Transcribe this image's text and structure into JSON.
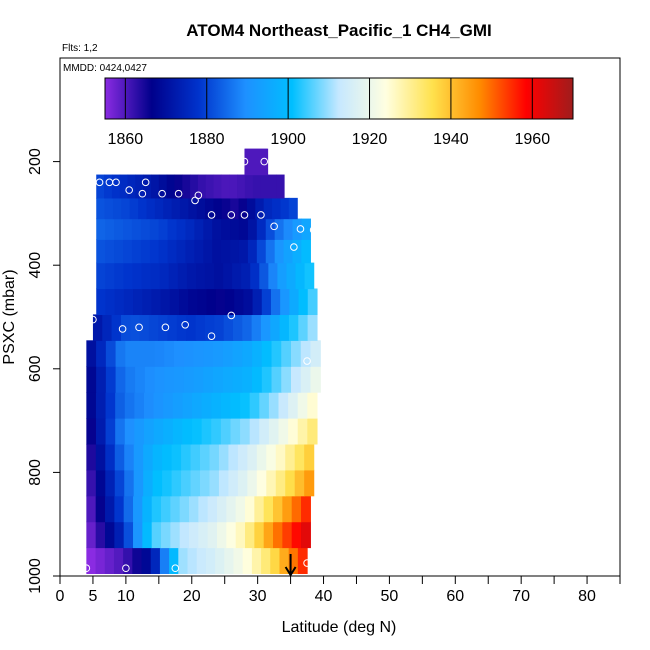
{
  "chart_data": {
    "type": "heatmap",
    "title": "ATOM4 Northeast_Pacific_1 CH4_GMI",
    "subtitle_flights": "Flts: 1,2",
    "subtitle_dates": "MMDD: 0424,0427",
    "xlabel": "Latitude (deg N)",
    "ylabel": "PSXC (mbar)",
    "xlim": [
      0,
      85
    ],
    "ylim": [
      1000,
      0
    ],
    "x_ticks": [
      0,
      5,
      10,
      20,
      30,
      40,
      50,
      60,
      70,
      80
    ],
    "x_tick_labels": [
      "0",
      "5",
      "10",
      "20",
      "30",
      "40",
      "50",
      "60",
      "70",
      "80"
    ],
    "y_ticks": [
      200,
      400,
      600,
      800,
      1000
    ],
    "y_tick_labels": [
      "200",
      "400",
      "600",
      "800",
      "1000"
    ],
    "colorbar": {
      "range": [
        1855,
        1970
      ],
      "ticks": [
        1860,
        1880,
        1900,
        1920,
        1940,
        1960
      ],
      "tick_labels": [
        "1860",
        "1880",
        "1900",
        "1920",
        "1940",
        "1960"
      ],
      "colors": [
        "#8a2be2",
        "#00008b",
        "#0033cc",
        "#1e90ff",
        "#00bfff",
        "#c6e8ff",
        "#ffffe0",
        "#ffe14d",
        "#ff8c00",
        "#ff0000",
        "#a01c1c"
      ],
      "grid": true
    },
    "profiles": [
      {
        "pressure": 970,
        "lat_start": 4,
        "lat_end": 37.5,
        "values": [
          1855,
          1860,
          1870,
          1910,
          1915,
          1922,
          1935,
          1955
        ]
      },
      {
        "pressure": 920,
        "lat_start": 4,
        "lat_end": 38,
        "values": [
          1858,
          1875,
          1905,
          1912,
          1918,
          1928,
          1948,
          1962
        ]
      },
      {
        "pressure": 870,
        "lat_start": 4,
        "lat_end": 38,
        "values": [
          1860,
          1880,
          1902,
          1908,
          1914,
          1922,
          1938,
          1955
        ]
      },
      {
        "pressure": 820,
        "lat_start": 4,
        "lat_end": 38.5,
        "values": [
          1862,
          1882,
          1900,
          1905,
          1910,
          1918,
          1930,
          1945
        ]
      },
      {
        "pressure": 770,
        "lat_start": 4,
        "lat_end": 38.5,
        "values": [
          1864,
          1885,
          1898,
          1903,
          1908,
          1915,
          1925,
          1938
        ]
      },
      {
        "pressure": 720,
        "lat_start": 4,
        "lat_end": 39,
        "values": [
          1866,
          1888,
          1895,
          1900,
          1904,
          1910,
          1920,
          1932
        ]
      },
      {
        "pressure": 670,
        "lat_start": 4,
        "lat_end": 39,
        "values": [
          1868,
          1885,
          1890,
          1894,
          1898,
          1902,
          1912,
          1925
        ]
      },
      {
        "pressure": 620,
        "lat_start": 4,
        "lat_end": 39.5,
        "values": [
          1868,
          1886,
          1890,
          1892,
          1895,
          1898,
          1908,
          1920
        ]
      },
      {
        "pressure": 570,
        "lat_start": 4,
        "lat_end": 39.5,
        "values": [
          1870,
          1888,
          1888,
          1890,
          1892,
          1896,
          1905,
          1915
        ]
      },
      {
        "pressure": 520,
        "lat_start": 5,
        "lat_end": 39,
        "values": [
          1872,
          1882,
          1880,
          1878,
          1880,
          1885,
          1898,
          1910
        ]
      },
      {
        "pressure": 470,
        "lat_start": 5.5,
        "lat_end": 39,
        "values": [
          1878,
          1875,
          1872,
          1868,
          1866,
          1870,
          1890,
          1905
        ]
      },
      {
        "pressure": 420,
        "lat_start": 5.5,
        "lat_end": 38.5,
        "values": [
          1880,
          1878,
          1876,
          1872,
          1870,
          1874,
          1892,
          1902
        ]
      },
      {
        "pressure": 370,
        "lat_start": 5.5,
        "lat_end": 38,
        "values": [
          1882,
          1880,
          1878,
          1874,
          1870,
          1872,
          1890,
          1900
        ]
      },
      {
        "pressure": 330,
        "lat_start": 5.5,
        "lat_end": 38,
        "values": [
          1884,
          1882,
          1880,
          1876,
          1870,
          1868,
          1885,
          1895
        ]
      },
      {
        "pressure": 290,
        "lat_start": 5.5,
        "lat_end": 36,
        "values": [
          1882,
          1880,
          1876,
          1872,
          1868,
          1864,
          1875,
          1880
        ]
      },
      {
        "pressure": 250,
        "lat_start": 5.5,
        "lat_end": 34,
        "values": [
          1880,
          1876,
          1872,
          1866,
          1862,
          1860,
          1862,
          1862
        ]
      },
      {
        "pressure": 200,
        "lat_start": 28,
        "lat_end": 31.5,
        "values": [
          1860,
          1860
        ]
      }
    ],
    "sample_points": [
      {
        "lat": 6,
        "pressure": 240
      },
      {
        "lat": 7.5,
        "pressure": 240
      },
      {
        "lat": 8.5,
        "pressure": 240
      },
      {
        "lat": 10.5,
        "pressure": 255
      },
      {
        "lat": 13,
        "pressure": 240
      },
      {
        "lat": 12.5,
        "pressure": 262
      },
      {
        "lat": 15.5,
        "pressure": 262
      },
      {
        "lat": 18,
        "pressure": 262
      },
      {
        "lat": 20.5,
        "pressure": 275
      },
      {
        "lat": 21,
        "pressure": 265
      },
      {
        "lat": 23,
        "pressure": 303
      },
      {
        "lat": 26,
        "pressure": 303
      },
      {
        "lat": 28,
        "pressure": 303
      },
      {
        "lat": 30.5,
        "pressure": 303
      },
      {
        "lat": 28,
        "pressure": 200
      },
      {
        "lat": 31,
        "pressure": 200
      },
      {
        "lat": 32.5,
        "pressure": 325
      },
      {
        "lat": 35.5,
        "pressure": 365
      },
      {
        "lat": 36.5,
        "pressure": 330
      },
      {
        "lat": 38.5,
        "pressure": 332
      },
      {
        "lat": 4,
        "pressure": 527
      },
      {
        "lat": 5,
        "pressure": 505
      },
      {
        "lat": 9.5,
        "pressure": 523
      },
      {
        "lat": 12,
        "pressure": 520
      },
      {
        "lat": 16,
        "pressure": 520
      },
      {
        "lat": 19,
        "pressure": 515
      },
      {
        "lat": 23,
        "pressure": 537
      },
      {
        "lat": 26,
        "pressure": 497
      },
      {
        "lat": 37.5,
        "pressure": 585
      },
      {
        "lat": 4,
        "pressure": 985
      },
      {
        "lat": 10,
        "pressure": 985
      },
      {
        "lat": 17.5,
        "pressure": 985
      },
      {
        "lat": 37.5,
        "pressure": 975
      }
    ],
    "marker": {
      "type": "arrow-down",
      "lat": 35,
      "pressure": 1000
    }
  }
}
